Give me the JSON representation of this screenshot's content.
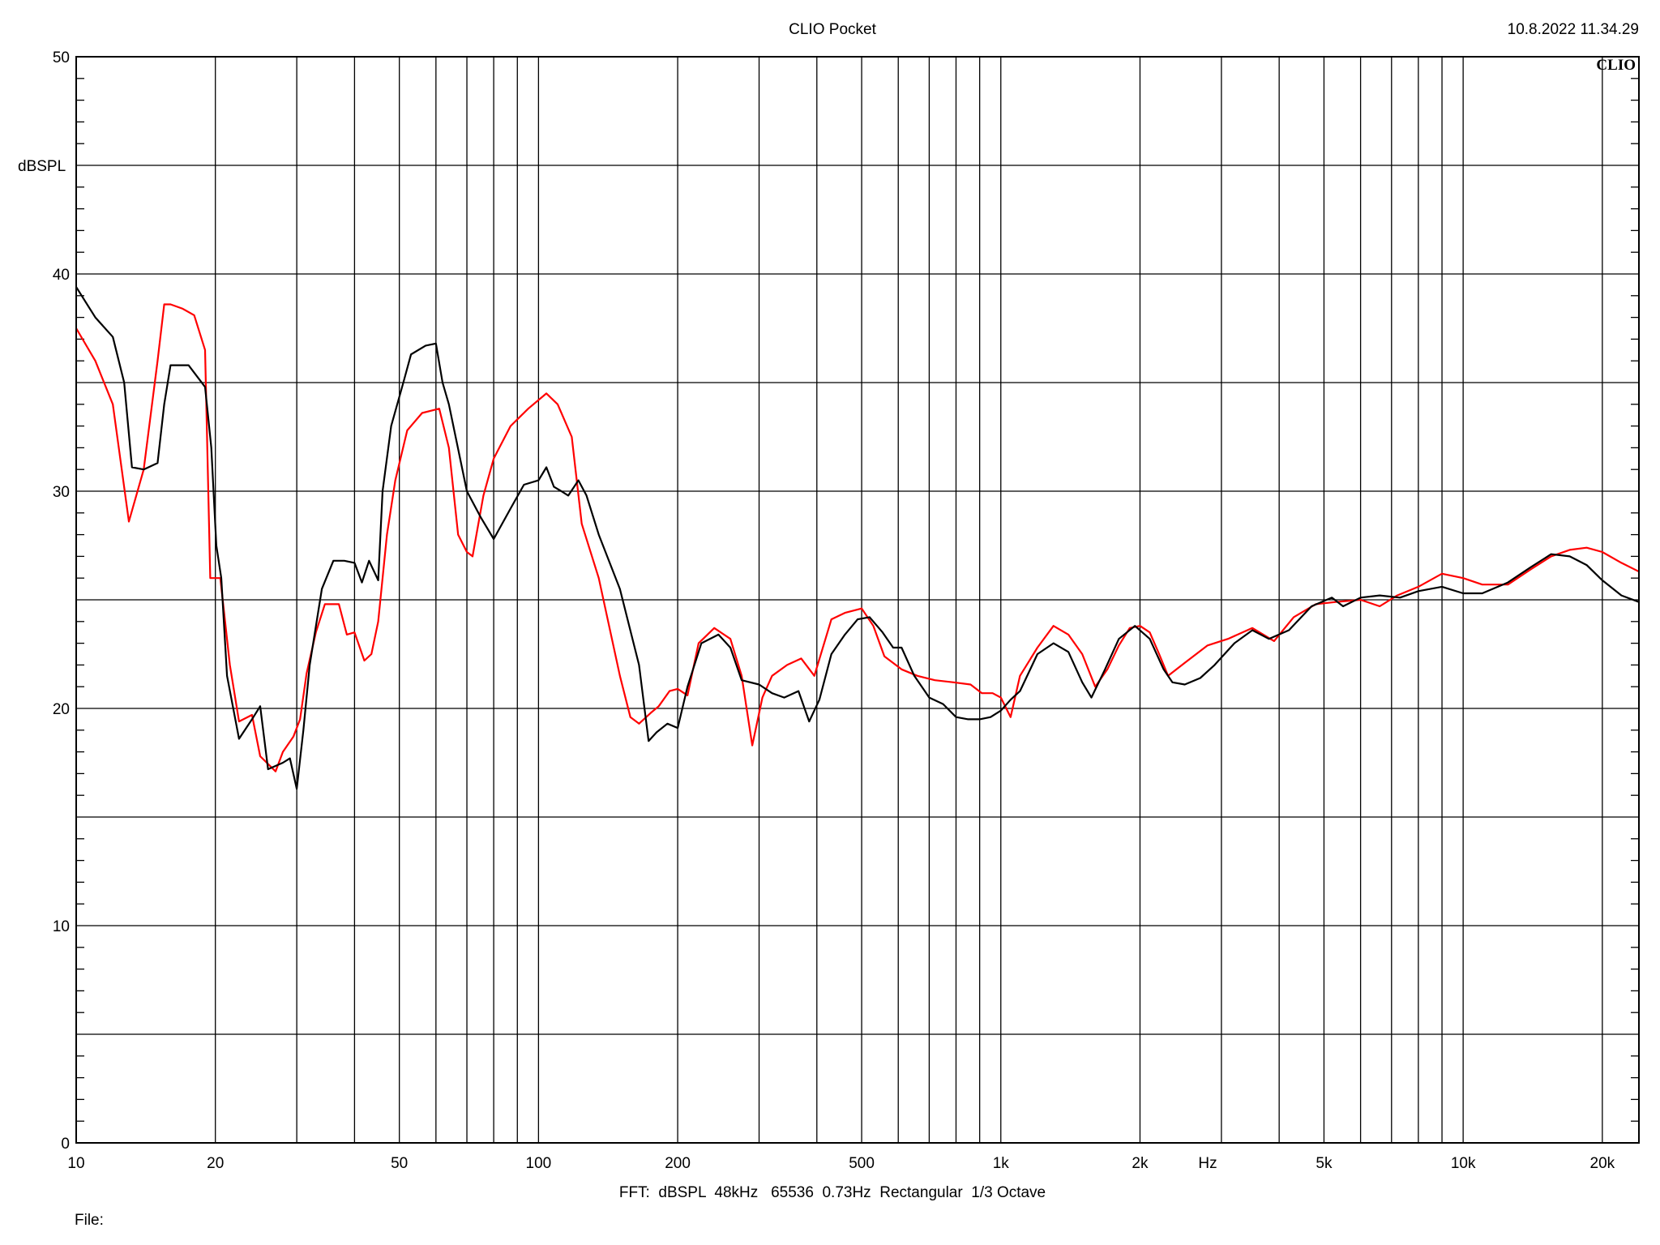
{
  "header": {
    "title": "CLIO Pocket",
    "timestamp": "10.8.2022 11.34.29",
    "brand": "CLIO"
  },
  "footer": {
    "settings": "FFT:  dBSPL  48kHz   65536  0.73Hz  Rectangular  1/3 Octave",
    "file_label": "File:"
  },
  "chart_data": {
    "type": "line",
    "title": "CLIO Pocket",
    "ylabel": "dBSPL",
    "xlabel": "Hz",
    "x_scale": "log",
    "xlim": [
      10,
      24000
    ],
    "ylim": [
      0,
      50
    ],
    "grid": true,
    "x_ticks": [
      {
        "value": 10,
        "label": "10"
      },
      {
        "value": 20,
        "label": "20"
      },
      {
        "value": 50,
        "label": "50"
      },
      {
        "value": 100,
        "label": "100"
      },
      {
        "value": 200,
        "label": "200"
      },
      {
        "value": 500,
        "label": "500"
      },
      {
        "value": 1000,
        "label": "1k"
      },
      {
        "value": 2000,
        "label": "2k"
      },
      {
        "value": 5000,
        "label": "5k"
      },
      {
        "value": 10000,
        "label": "10k"
      },
      {
        "value": 20000,
        "label": "20k"
      }
    ],
    "y_ticks": [
      {
        "value": 0,
        "label": "0"
      },
      {
        "value": 10,
        "label": "10"
      },
      {
        "value": 20,
        "label": "20"
      },
      {
        "value": 30,
        "label": "30"
      },
      {
        "value": 40,
        "label": "40"
      },
      {
        "value": 50,
        "label": "50"
      }
    ],
    "series": [
      {
        "color": "#ff0000",
        "points": [
          [
            10,
            37.5
          ],
          [
            11,
            36
          ],
          [
            12,
            34
          ],
          [
            13,
            28.6
          ],
          [
            14,
            31
          ],
          [
            15,
            36
          ],
          [
            15.5,
            38.6
          ],
          [
            16,
            38.6
          ],
          [
            17,
            38.4
          ],
          [
            18,
            38.1
          ],
          [
            19,
            36.5
          ],
          [
            19.5,
            26
          ],
          [
            20.5,
            26
          ],
          [
            21.5,
            22
          ],
          [
            22.5,
            19.4
          ],
          [
            24,
            19.7
          ],
          [
            25,
            17.8
          ],
          [
            27,
            17.1
          ],
          [
            28,
            18
          ],
          [
            29.5,
            18.7
          ],
          [
            30.5,
            19.5
          ],
          [
            31.5,
            21.6
          ],
          [
            33,
            23.5
          ],
          [
            34.5,
            24.8
          ],
          [
            37,
            24.8
          ],
          [
            38.5,
            23.4
          ],
          [
            40,
            23.5
          ],
          [
            42,
            22.2
          ],
          [
            43.5,
            22.5
          ],
          [
            45,
            24
          ],
          [
            47,
            28
          ],
          [
            49,
            30.5
          ],
          [
            52,
            32.8
          ],
          [
            56,
            33.6
          ],
          [
            61,
            33.8
          ],
          [
            64,
            32
          ],
          [
            67,
            28
          ],
          [
            70,
            27.2
          ],
          [
            72,
            27
          ],
          [
            76,
            29.8
          ],
          [
            80,
            31.5
          ],
          [
            87,
            33
          ],
          [
            95,
            33.8
          ],
          [
            104,
            34.5
          ],
          [
            110,
            34
          ],
          [
            118,
            32.5
          ],
          [
            124,
            28.5
          ],
          [
            135,
            26
          ],
          [
            150,
            21.5
          ],
          [
            158,
            19.6
          ],
          [
            165,
            19.3
          ],
          [
            175,
            19.8
          ],
          [
            182,
            20.1
          ],
          [
            192,
            20.8
          ],
          [
            200,
            20.9
          ],
          [
            210,
            20.6
          ],
          [
            222,
            23
          ],
          [
            240,
            23.7
          ],
          [
            260,
            23.2
          ],
          [
            275,
            21.5
          ],
          [
            290,
            18.3
          ],
          [
            305,
            20.5
          ],
          [
            320,
            21.5
          ],
          [
            345,
            22
          ],
          [
            370,
            22.3
          ],
          [
            395,
            21.5
          ],
          [
            430,
            24.1
          ],
          [
            460,
            24.4
          ],
          [
            500,
            24.6
          ],
          [
            530,
            23.8
          ],
          [
            560,
            22.4
          ],
          [
            610,
            21.8
          ],
          [
            660,
            21.5
          ],
          [
            720,
            21.3
          ],
          [
            790,
            21.2
          ],
          [
            860,
            21.1
          ],
          [
            910,
            20.7
          ],
          [
            960,
            20.7
          ],
          [
            1000,
            20.5
          ],
          [
            1050,
            19.6
          ],
          [
            1100,
            21.5
          ],
          [
            1200,
            22.8
          ],
          [
            1300,
            23.8
          ],
          [
            1400,
            23.4
          ],
          [
            1500,
            22.5
          ],
          [
            1600,
            21
          ],
          [
            1700,
            21.8
          ],
          [
            1800,
            22.9
          ],
          [
            1900,
            23.7
          ],
          [
            2000,
            23.8
          ],
          [
            2100,
            23.5
          ],
          [
            2200,
            22.5
          ],
          [
            2300,
            21.5
          ],
          [
            2500,
            22.1
          ],
          [
            2800,
            22.9
          ],
          [
            3100,
            23.2
          ],
          [
            3500,
            23.7
          ],
          [
            3900,
            23.1
          ],
          [
            4300,
            24.2
          ],
          [
            4800,
            24.8
          ],
          [
            5300,
            24.9
          ],
          [
            6000,
            25
          ],
          [
            6600,
            24.7
          ],
          [
            7200,
            25.2
          ],
          [
            8000,
            25.6
          ],
          [
            9000,
            26.2
          ],
          [
            10000,
            26
          ],
          [
            11000,
            25.7
          ],
          [
            12500,
            25.7
          ],
          [
            14000,
            26.4
          ],
          [
            15500,
            27
          ],
          [
            17000,
            27.3
          ],
          [
            18500,
            27.4
          ],
          [
            20000,
            27.2
          ],
          [
            22000,
            26.7
          ],
          [
            24000,
            26.3
          ]
        ]
      },
      {
        "color": "#000000",
        "points": [
          [
            10,
            39.4
          ],
          [
            11,
            38
          ],
          [
            12,
            37.1
          ],
          [
            12.7,
            35
          ],
          [
            13.2,
            31.1
          ],
          [
            14,
            31
          ],
          [
            15,
            31.3
          ],
          [
            15.5,
            34
          ],
          [
            16,
            35.8
          ],
          [
            17.5,
            35.8
          ],
          [
            19,
            34.8
          ],
          [
            19.6,
            32
          ],
          [
            20.1,
            27.5
          ],
          [
            20.6,
            26
          ],
          [
            21.2,
            21.5
          ],
          [
            22.5,
            18.6
          ],
          [
            24,
            19.5
          ],
          [
            25,
            20.1
          ],
          [
            26,
            17.2
          ],
          [
            28,
            17.5
          ],
          [
            29,
            17.7
          ],
          [
            30,
            16.3
          ],
          [
            31,
            19
          ],
          [
            32,
            22
          ],
          [
            34,
            25.5
          ],
          [
            36,
            26.8
          ],
          [
            38,
            26.8
          ],
          [
            40,
            26.7
          ],
          [
            41.5,
            25.8
          ],
          [
            43,
            26.8
          ],
          [
            45,
            25.9
          ],
          [
            46,
            30
          ],
          [
            48,
            33
          ],
          [
            51,
            35
          ],
          [
            53,
            36.3
          ],
          [
            57,
            36.7
          ],
          [
            60,
            36.8
          ],
          [
            62,
            35
          ],
          [
            64,
            34
          ],
          [
            70,
            30
          ],
          [
            75,
            28.8
          ],
          [
            80,
            27.8
          ],
          [
            87,
            29.2
          ],
          [
            93,
            30.3
          ],
          [
            100,
            30.5
          ],
          [
            104,
            31.1
          ],
          [
            108,
            30.2
          ],
          [
            112,
            30
          ],
          [
            116,
            29.8
          ],
          [
            122,
            30.5
          ],
          [
            127,
            29.8
          ],
          [
            135,
            28
          ],
          [
            150,
            25.5
          ],
          [
            165,
            22
          ],
          [
            173,
            18.5
          ],
          [
            180,
            18.9
          ],
          [
            190,
            19.3
          ],
          [
            200,
            19.1
          ],
          [
            210,
            21
          ],
          [
            225,
            23
          ],
          [
            245,
            23.4
          ],
          [
            260,
            22.8
          ],
          [
            275,
            21.3
          ],
          [
            300,
            21.1
          ],
          [
            320,
            20.7
          ],
          [
            340,
            20.5
          ],
          [
            365,
            20.8
          ],
          [
            385,
            19.4
          ],
          [
            405,
            20.4
          ],
          [
            430,
            22.5
          ],
          [
            460,
            23.4
          ],
          [
            490,
            24.1
          ],
          [
            520,
            24.2
          ],
          [
            555,
            23.5
          ],
          [
            585,
            22.8
          ],
          [
            610,
            22.8
          ],
          [
            650,
            21.5
          ],
          [
            700,
            20.5
          ],
          [
            750,
            20.2
          ],
          [
            800,
            19.6
          ],
          [
            850,
            19.5
          ],
          [
            900,
            19.5
          ],
          [
            950,
            19.6
          ],
          [
            1000,
            19.9
          ],
          [
            1050,
            20.4
          ],
          [
            1100,
            20.8
          ],
          [
            1200,
            22.5
          ],
          [
            1300,
            23
          ],
          [
            1400,
            22.6
          ],
          [
            1500,
            21.2
          ],
          [
            1570,
            20.5
          ],
          [
            1680,
            21.8
          ],
          [
            1800,
            23.2
          ],
          [
            1950,
            23.8
          ],
          [
            2100,
            23.2
          ],
          [
            2250,
            21.8
          ],
          [
            2350,
            21.2
          ],
          [
            2500,
            21.1
          ],
          [
            2700,
            21.4
          ],
          [
            2900,
            22
          ],
          [
            3200,
            23
          ],
          [
            3500,
            23.6
          ],
          [
            3800,
            23.2
          ],
          [
            4200,
            23.6
          ],
          [
            4700,
            24.7
          ],
          [
            5200,
            25.1
          ],
          [
            5500,
            24.7
          ],
          [
            6000,
            25.1
          ],
          [
            6600,
            25.2
          ],
          [
            7300,
            25.1
          ],
          [
            8000,
            25.4
          ],
          [
            9000,
            25.6
          ],
          [
            10000,
            25.3
          ],
          [
            11000,
            25.3
          ],
          [
            12500,
            25.8
          ],
          [
            14000,
            26.5
          ],
          [
            15500,
            27.1
          ],
          [
            17000,
            27
          ],
          [
            18500,
            26.6
          ],
          [
            20000,
            25.9
          ],
          [
            22000,
            25.2
          ],
          [
            24000,
            24.9
          ]
        ]
      }
    ]
  }
}
